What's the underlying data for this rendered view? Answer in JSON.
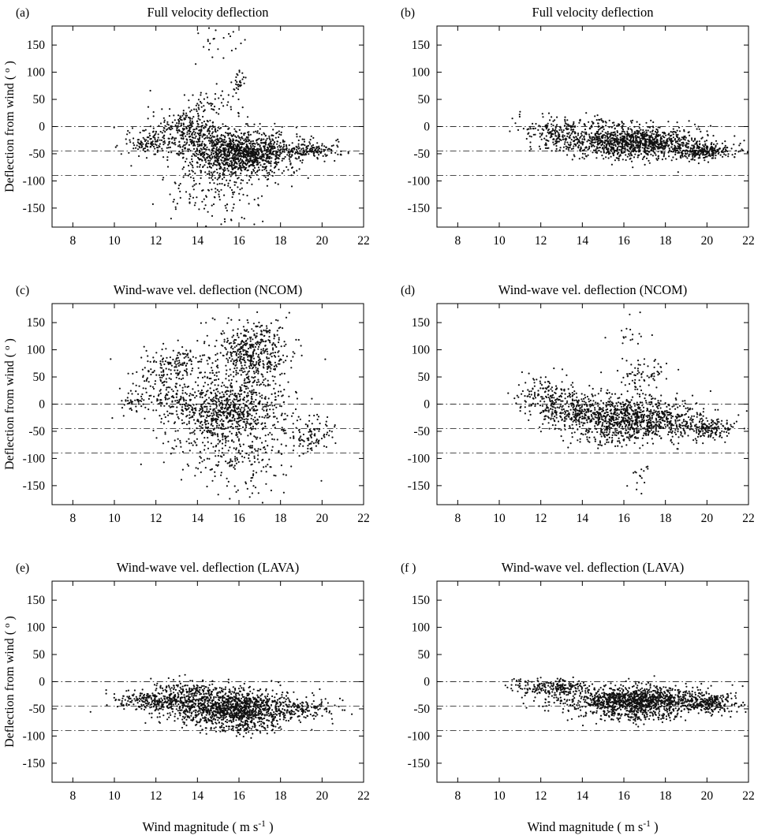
{
  "figure": {
    "background": "#ffffff",
    "point_color": "#111111",
    "axis_color": "#000000",
    "ref_line_color": "#333333",
    "xlabel": {
      "main": "Wind magnitude ( m s",
      "sup": "-1",
      "end": " )"
    },
    "ylabel": {
      "main": "Deflection from wind ( ",
      "sup": "o",
      "end": " )"
    },
    "x_ticks": [
      8,
      10,
      12,
      14,
      16,
      18,
      20,
      22
    ],
    "y_ticks": [
      -150,
      -100,
      -50,
      0,
      50,
      100,
      150
    ],
    "x_range": [
      7,
      22
    ],
    "y_range": [
      -185,
      185
    ]
  },
  "chart_data": [
    {
      "id": "a",
      "type": "scatter",
      "panel_label": "(a)",
      "title": "Full velocity deflection",
      "xlabel": "Wind magnitude ( m s-1 )",
      "ylabel": "Deflection from wind ( o )",
      "x_range": [
        7,
        22
      ],
      "y_range": [
        -185,
        185
      ],
      "ref_lines": [
        0,
        -45,
        -90
      ],
      "clusters": [
        {
          "cx": 16.2,
          "cy": -48,
          "sx": 1.3,
          "sy": 20,
          "n": 1200
        },
        {
          "cx": 13.6,
          "cy": -12,
          "sx": 0.9,
          "sy": 22,
          "n": 320
        },
        {
          "cx": 11.6,
          "cy": -28,
          "sx": 0.7,
          "sy": 12,
          "n": 110
        },
        {
          "cx": 14.9,
          "cy": -108,
          "sx": 1.2,
          "sy": 28,
          "n": 170
        },
        {
          "cx": 15.1,
          "cy": 150,
          "sx": 0.6,
          "sy": 14,
          "n": 22
        },
        {
          "cx": 16.0,
          "cy": 83,
          "sx": 0.15,
          "sy": 9,
          "n": 28
        },
        {
          "cx": 14.6,
          "cy": 38,
          "sx": 0.9,
          "sy": 14,
          "n": 60
        },
        {
          "cx": 19.6,
          "cy": -44,
          "sx": 0.7,
          "sy": 7,
          "n": 130
        },
        {
          "cx": 15.6,
          "cy": -160,
          "sx": 0.5,
          "sy": 12,
          "n": 12
        }
      ]
    },
    {
      "id": "b",
      "type": "scatter",
      "panel_label": "(b)",
      "title": "Full velocity deflection",
      "xlabel": "Wind magnitude ( m s-1 )",
      "ylabel": "Deflection from wind ( o )",
      "x_range": [
        7,
        22
      ],
      "y_range": [
        -185,
        185
      ],
      "ref_lines": [
        0,
        -45,
        -90
      ],
      "clusters": [
        {
          "cx": 16.4,
          "cy": -30,
          "sx": 1.7,
          "sy": 14,
          "n": 1150
        },
        {
          "cx": 19.9,
          "cy": -45,
          "sx": 0.7,
          "sy": 7,
          "n": 230
        },
        {
          "cx": 12.6,
          "cy": -12,
          "sx": 0.8,
          "sy": 13,
          "n": 160
        },
        {
          "cx": 14.8,
          "cy": 5,
          "sx": 1.0,
          "sy": 8,
          "n": 70
        },
        {
          "cx": 11.0,
          "cy": 22,
          "sx": 0.2,
          "sy": 5,
          "n": 4
        }
      ]
    },
    {
      "id": "c",
      "type": "scatter",
      "panel_label": "(c)",
      "title": "Wind-wave vel. deflection (NCOM)",
      "xlabel": "Wind magnitude ( m s-1 )",
      "ylabel": "Deflection from wind ( o )",
      "x_range": [
        7,
        22
      ],
      "y_range": [
        -185,
        185
      ],
      "ref_lines": [
        0,
        -45,
        -90
      ],
      "clusters": [
        {
          "cx": 16.6,
          "cy": 92,
          "sx": 0.9,
          "sy": 32,
          "n": 520
        },
        {
          "cx": 15.4,
          "cy": -12,
          "sx": 1.4,
          "sy": 28,
          "n": 760
        },
        {
          "cx": 13.1,
          "cy": 76,
          "sx": 0.9,
          "sy": 18,
          "n": 140
        },
        {
          "cx": 12.1,
          "cy": 22,
          "sx": 0.8,
          "sy": 24,
          "n": 150
        },
        {
          "cx": 15.6,
          "cy": -88,
          "sx": 1.4,
          "sy": 30,
          "n": 230
        },
        {
          "cx": 19.5,
          "cy": -58,
          "sx": 0.7,
          "sy": 14,
          "n": 100
        },
        {
          "cx": 16.6,
          "cy": -158,
          "sx": 0.5,
          "sy": 10,
          "n": 14
        },
        {
          "cx": 10.9,
          "cy": 2,
          "sx": 0.3,
          "sy": 6,
          "n": 20
        }
      ]
    },
    {
      "id": "d",
      "type": "scatter",
      "panel_label": "(d)",
      "title": "Wind-wave vel. deflection (NCOM)",
      "xlabel": "Wind magnitude ( m s-1 )",
      "ylabel": "Deflection from wind ( o )",
      "x_range": [
        7,
        22
      ],
      "y_range": [
        -185,
        185
      ],
      "ref_lines": [
        0,
        -45,
        -90
      ],
      "clusters": [
        {
          "cx": 16.4,
          "cy": -28,
          "sx": 1.7,
          "sy": 20,
          "n": 1050
        },
        {
          "cx": 16.8,
          "cy": 55,
          "sx": 0.6,
          "sy": 12,
          "n": 70
        },
        {
          "cx": 16.4,
          "cy": 122,
          "sx": 0.4,
          "sy": 22,
          "n": 18
        },
        {
          "cx": 12.3,
          "cy": 18,
          "sx": 0.7,
          "sy": 18,
          "n": 130
        },
        {
          "cx": 13.6,
          "cy": -6,
          "sx": 0.9,
          "sy": 18,
          "n": 210
        },
        {
          "cx": 16.8,
          "cy": -140,
          "sx": 0.25,
          "sy": 25,
          "n": 16
        },
        {
          "cx": 20.0,
          "cy": -45,
          "sx": 0.7,
          "sy": 9,
          "n": 160
        }
      ]
    },
    {
      "id": "e",
      "type": "scatter",
      "panel_label": "(e)",
      "title": "Wind-wave vel. deflection (LAVA)",
      "xlabel": "Wind magnitude ( m s-1 )",
      "ylabel": "Deflection from wind ( o )",
      "x_range": [
        7,
        22
      ],
      "y_range": [
        -185,
        185
      ],
      "ref_lines": [
        0,
        -45,
        -90
      ],
      "clusters": [
        {
          "cx": 15.6,
          "cy": -50,
          "sx": 1.5,
          "sy": 16,
          "n": 1250
        },
        {
          "cx": 12.1,
          "cy": -35,
          "sx": 0.9,
          "sy": 9,
          "n": 260
        },
        {
          "cx": 13.9,
          "cy": -15,
          "sx": 1.1,
          "sy": 9,
          "n": 150
        },
        {
          "cx": 19.0,
          "cy": -50,
          "sx": 0.8,
          "sy": 9,
          "n": 130
        },
        {
          "cx": 16.2,
          "cy": -85,
          "sx": 1.0,
          "sy": 7,
          "n": 90
        },
        {
          "cx": 10.4,
          "cy": -38,
          "sx": 0.2,
          "sy": 4,
          "n": 12
        }
      ]
    },
    {
      "id": "f",
      "type": "scatter",
      "panel_label": "(f )",
      "title": "Wind-wave vel. deflection (LAVA)",
      "xlabel": "Wind magnitude ( m s-1 )",
      "ylabel": "Deflection from wind ( o )",
      "x_range": [
        7,
        22
      ],
      "y_range": [
        -185,
        185
      ],
      "ref_lines": [
        0,
        -45,
        -90
      ],
      "clusters": [
        {
          "cx": 16.6,
          "cy": -35,
          "sx": 1.7,
          "sy": 13,
          "n": 1250
        },
        {
          "cx": 12.6,
          "cy": -10,
          "sx": 0.8,
          "sy": 8,
          "n": 210
        },
        {
          "cx": 20.0,
          "cy": -40,
          "sx": 0.7,
          "sy": 8,
          "n": 210
        },
        {
          "cx": 16.5,
          "cy": -62,
          "sx": 1.4,
          "sy": 7,
          "n": 110
        },
        {
          "cx": 11.0,
          "cy": -5,
          "sx": 0.3,
          "sy": 5,
          "n": 10
        }
      ]
    }
  ]
}
